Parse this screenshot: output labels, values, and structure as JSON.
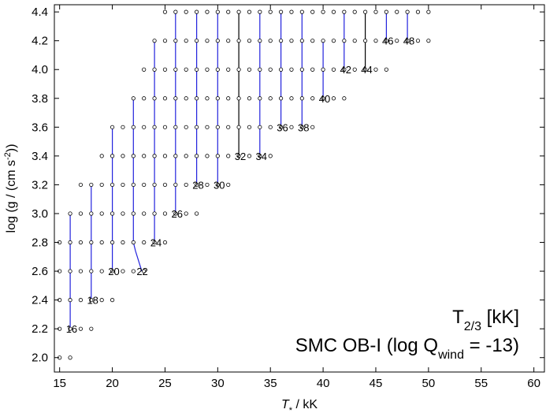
{
  "chart_data": {
    "type": "scatter",
    "xlabel_symbol": "T",
    "xlabel_sub": "*",
    "xlabel_rest": " / kK",
    "ylabel_main": "log (g / (cm s",
    "ylabel_sup": "-2",
    "ylabel_end": "))",
    "xlim": [
      14.5,
      61
    ],
    "ylim": [
      1.9,
      4.45
    ],
    "xticks": [
      15,
      20,
      25,
      30,
      35,
      40,
      45,
      50,
      55,
      60
    ],
    "yticks": [
      2.0,
      2.2,
      2.4,
      2.6,
      2.8,
      3.0,
      3.2,
      3.4,
      3.6,
      3.8,
      4.0,
      4.2,
      4.4
    ],
    "legend_line1": {
      "main": "T",
      "sub": "2/3",
      "rest": "  [kK]"
    },
    "legend_line2": {
      "main": "SMC OB-I (log Q",
      "sub": "wind",
      "rest": " = -13)"
    },
    "legend_position": "bottom-right",
    "grid": false,
    "point_color": "#000000",
    "line_color": "#2222dd",
    "grid_points": [
      {
        "x": 15,
        "y": [
          2.0,
          2.2,
          2.4,
          2.6,
          2.8
        ]
      },
      {
        "x": 16,
        "y": [
          2.0,
          2.2,
          2.4,
          2.6,
          2.8,
          3.0
        ]
      },
      {
        "x": 17,
        "y": [
          2.2,
          2.4,
          2.6,
          2.8,
          3.0,
          3.2
        ]
      },
      {
        "x": 18,
        "y": [
          2.2,
          2.4,
          2.6,
          2.8,
          3.0,
          3.2
        ]
      },
      {
        "x": 19,
        "y": [
          2.4,
          2.6,
          2.8,
          3.0,
          3.2,
          3.4
        ]
      },
      {
        "x": 20,
        "y": [
          2.4,
          2.6,
          2.8,
          3.0,
          3.2,
          3.4,
          3.6
        ]
      },
      {
        "x": 21,
        "y": [
          2.6,
          2.8,
          3.0,
          3.2,
          3.4,
          3.6
        ]
      },
      {
        "x": 22,
        "y": [
          2.6,
          2.8,
          3.0,
          3.2,
          3.4,
          3.6,
          3.8
        ]
      },
      {
        "x": 23,
        "y": [
          2.6,
          2.8,
          3.0,
          3.2,
          3.4,
          3.6,
          3.8,
          4.0
        ]
      },
      {
        "x": 24,
        "y": [
          2.8,
          3.0,
          3.2,
          3.4,
          3.6,
          3.8,
          4.0,
          4.2
        ]
      },
      {
        "x": 25,
        "y": [
          2.8,
          3.0,
          3.2,
          3.4,
          3.6,
          3.8,
          4.0,
          4.2,
          4.4
        ]
      },
      {
        "x": 26,
        "y": [
          3.0,
          3.2,
          3.4,
          3.6,
          3.8,
          4.0,
          4.2,
          4.4
        ]
      },
      {
        "x": 27,
        "y": [
          3.0,
          3.2,
          3.4,
          3.6,
          3.8,
          4.0,
          4.2,
          4.4
        ]
      },
      {
        "x": 28,
        "y": [
          3.0,
          3.2,
          3.4,
          3.6,
          3.8,
          4.0,
          4.2,
          4.4
        ]
      },
      {
        "x": 29,
        "y": [
          3.2,
          3.4,
          3.6,
          3.8,
          4.0,
          4.2,
          4.4
        ]
      },
      {
        "x": 30,
        "y": [
          3.2,
          3.4,
          3.6,
          3.8,
          4.0,
          4.2,
          4.4
        ]
      },
      {
        "x": 31,
        "y": [
          3.2,
          3.4,
          3.6,
          3.8,
          4.0,
          4.2,
          4.4
        ]
      },
      {
        "x": 32,
        "y": [
          3.4,
          3.6,
          3.8,
          4.0,
          4.2,
          4.4
        ]
      },
      {
        "x": 33,
        "y": [
          3.4,
          3.6,
          3.8,
          4.0,
          4.2,
          4.4
        ]
      },
      {
        "x": 34,
        "y": [
          3.4,
          3.6,
          3.8,
          4.0,
          4.2,
          4.4
        ]
      },
      {
        "x": 35,
        "y": [
          3.4,
          3.6,
          3.8,
          4.0,
          4.2,
          4.4
        ]
      },
      {
        "x": 36,
        "y": [
          3.6,
          3.8,
          4.0,
          4.2,
          4.4
        ]
      },
      {
        "x": 37,
        "y": [
          3.6,
          3.8,
          4.0,
          4.2,
          4.4
        ]
      },
      {
        "x": 38,
        "y": [
          3.6,
          3.8,
          4.0,
          4.2,
          4.4
        ]
      },
      {
        "x": 39,
        "y": [
          3.6,
          3.8,
          4.0,
          4.2,
          4.4
        ]
      },
      {
        "x": 40,
        "y": [
          3.8,
          4.0,
          4.2,
          4.4
        ]
      },
      {
        "x": 41,
        "y": [
          3.8,
          4.0,
          4.2,
          4.4
        ]
      },
      {
        "x": 42,
        "y": [
          3.8,
          4.0,
          4.2,
          4.4
        ]
      },
      {
        "x": 43,
        "y": [
          4.0,
          4.2,
          4.4
        ]
      },
      {
        "x": 44,
        "y": [
          4.0,
          4.2,
          4.4
        ]
      },
      {
        "x": 45,
        "y": [
          4.0,
          4.2,
          4.4
        ]
      },
      {
        "x": 46,
        "y": [
          4.0,
          4.2,
          4.4
        ]
      },
      {
        "x": 47,
        "y": [
          4.2,
          4.4
        ]
      },
      {
        "x": 48,
        "y": [
          4.2,
          4.4
        ]
      },
      {
        "x": 49,
        "y": [
          4.2,
          4.4
        ]
      },
      {
        "x": 50,
        "y": [
          4.2,
          4.4
        ]
      }
    ],
    "contours": [
      {
        "label": "16",
        "points": [
          [
            16,
            3.0
          ],
          [
            16,
            2.2
          ]
        ],
        "label_at": [
          15.6,
          2.2
        ],
        "color": "#2222dd"
      },
      {
        "label": "18",
        "points": [
          [
            18,
            3.2
          ],
          [
            18,
            2.4
          ]
        ],
        "label_at": [
          17.6,
          2.4
        ],
        "color": "#2222dd"
      },
      {
        "label": "20",
        "points": [
          [
            20,
            3.6
          ],
          [
            20,
            2.6
          ]
        ],
        "label_at": [
          19.6,
          2.6
        ],
        "color": "#2222dd"
      },
      {
        "label": "22",
        "points": [
          [
            22,
            3.8
          ],
          [
            22,
            2.8
          ],
          [
            22.2,
            2.74
          ],
          [
            22.5,
            2.67
          ],
          [
            22.8,
            2.6
          ]
        ],
        "label_at": [
          22.3,
          2.6
        ],
        "color": "#2222dd"
      },
      {
        "label": "24",
        "points": [
          [
            24,
            4.2
          ],
          [
            24,
            2.8
          ]
        ],
        "label_at": [
          23.6,
          2.8
        ],
        "color": "#2222dd"
      },
      {
        "label": "26",
        "points": [
          [
            26,
            4.4
          ],
          [
            26,
            3.0
          ]
        ],
        "label_at": [
          25.6,
          3.0
        ],
        "color": "#2222dd"
      },
      {
        "label": "28",
        "points": [
          [
            28,
            4.4
          ],
          [
            28,
            3.2
          ]
        ],
        "label_at": [
          27.6,
          3.2
        ],
        "color": "#2222dd"
      },
      {
        "label": "30",
        "points": [
          [
            30,
            4.4
          ],
          [
            30,
            3.2
          ]
        ],
        "label_at": [
          29.6,
          3.2
        ],
        "color": "#2222dd"
      },
      {
        "label": "32",
        "points": [
          [
            32,
            4.4
          ],
          [
            32,
            3.4
          ]
        ],
        "label_at": [
          31.6,
          3.4
        ],
        "color": "#000000"
      },
      {
        "label": "34",
        "points": [
          [
            34,
            4.4
          ],
          [
            34,
            3.4
          ]
        ],
        "label_at": [
          33.6,
          3.4
        ],
        "color": "#2222dd"
      },
      {
        "label": "36",
        "points": [
          [
            36,
            4.4
          ],
          [
            36,
            3.6
          ]
        ],
        "label_at": [
          35.6,
          3.6
        ],
        "color": "#2222dd"
      },
      {
        "label": "38",
        "points": [
          [
            38,
            4.4
          ],
          [
            38,
            3.6
          ]
        ],
        "label_at": [
          37.6,
          3.6
        ],
        "color": "#2222dd"
      },
      {
        "label": "40",
        "points": [
          [
            40,
            4.2
          ],
          [
            40,
            3.8
          ]
        ],
        "label_at": [
          39.6,
          3.8
        ],
        "color": "#2222dd"
      },
      {
        "label": "42",
        "points": [
          [
            42,
            4.4
          ],
          [
            42,
            4.0
          ]
        ],
        "label_at": [
          41.6,
          4.0
        ],
        "color": "#2222dd"
      },
      {
        "label": "44",
        "points": [
          [
            44,
            4.4
          ],
          [
            44,
            4.0
          ]
        ],
        "label_at": [
          43.6,
          4.0
        ],
        "color": "#000000"
      },
      {
        "label": "46",
        "points": [
          [
            46,
            4.4
          ],
          [
            46,
            4.2
          ]
        ],
        "label_at": [
          45.6,
          4.2
        ],
        "color": "#2222dd"
      },
      {
        "label": "48",
        "points": [
          [
            48,
            4.4
          ],
          [
            48,
            4.2
          ]
        ],
        "label_at": [
          47.6,
          4.2
        ],
        "color": "#2222dd"
      }
    ]
  }
}
